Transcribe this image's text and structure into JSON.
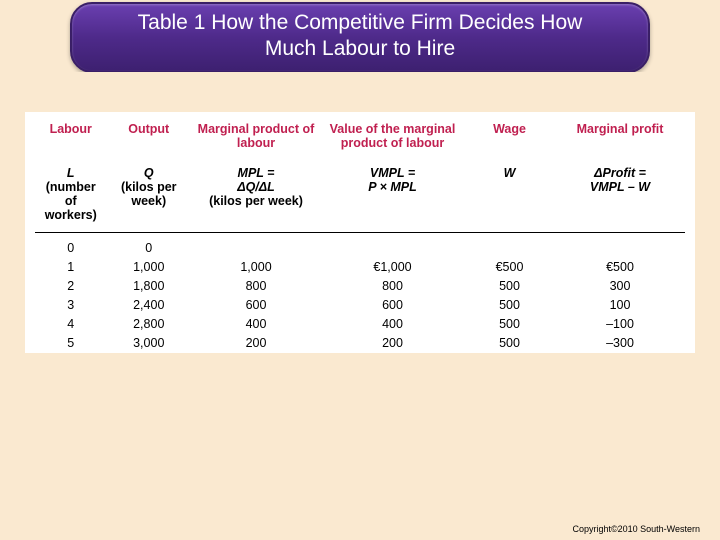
{
  "title": {
    "line1": "Table 1 How the Competitive Firm Decides How",
    "line2": "Much Labour to Hire"
  },
  "table": {
    "headers": {
      "labour": {
        "name": "Labour",
        "sub_sym": "L",
        "sub_txt": "(number of workers)"
      },
      "output": {
        "name": "Output",
        "sub_sym": "Q",
        "sub_txt": "(kilos per week)"
      },
      "mpl": {
        "name": "Marginal product of labour",
        "sub_sym": "MPL =",
        "sub_sym2": "ΔQ/ΔL",
        "sub_txt": "(kilos per week)"
      },
      "vmpl": {
        "name": "Value of the marginal product of labour",
        "sub_sym": "VMPL =",
        "sub_sym2": "P × MPL"
      },
      "wage": {
        "name": "Wage",
        "sub_sym": "W"
      },
      "mprofit": {
        "name": "Marginal profit",
        "sub_sym": "ΔProfit =",
        "sub_sym2": "VMPL – W"
      }
    },
    "rows": [
      {
        "L": "0",
        "Q": "0",
        "MPL": "",
        "VMPL": "",
        "W": "",
        "MP": ""
      },
      {
        "L": "1",
        "Q": "1,000",
        "MPL": "1,000",
        "VMPL": "€1,000",
        "W": "€500",
        "MP": "€500"
      },
      {
        "L": "2",
        "Q": "1,800",
        "MPL": "800",
        "VMPL": "800",
        "W": "500",
        "MP": "300"
      },
      {
        "L": "3",
        "Q": "2,400",
        "MPL": "600",
        "VMPL": "600",
        "W": "500",
        "MP": "100"
      },
      {
        "L": "4",
        "Q": "2,800",
        "MPL": "400",
        "VMPL": "400",
        "W": "500",
        "MP": "–100"
      },
      {
        "L": "5",
        "Q": "3,000",
        "MPL": "200",
        "VMPL": "200",
        "W": "500",
        "MP": "–300"
      }
    ]
  },
  "copyright": "Copyright©2010 South-Western"
}
